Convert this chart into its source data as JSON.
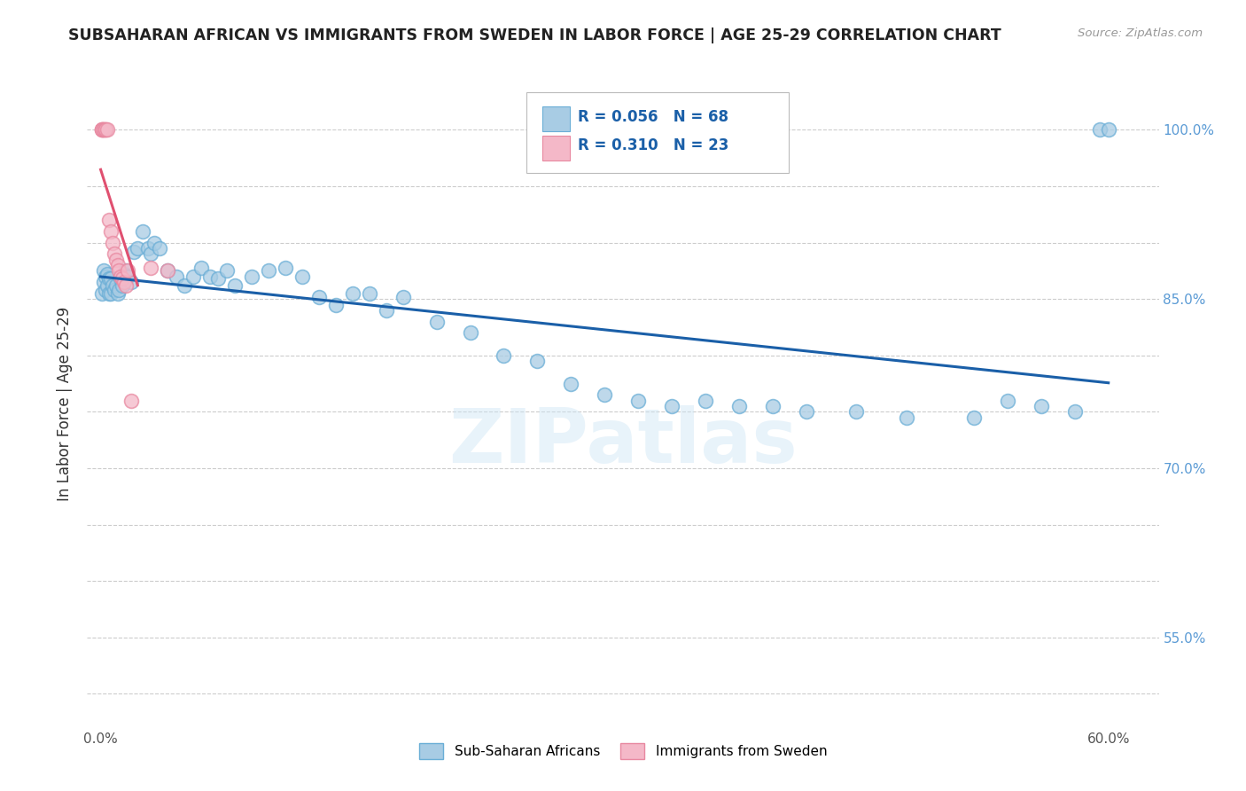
{
  "title": "SUBSAHARAN AFRICAN VS IMMIGRANTS FROM SWEDEN IN LABOR FORCE | AGE 25-29 CORRELATION CHART",
  "source": "Source: ZipAtlas.com",
  "ylabel": "In Labor Force | Age 25-29",
  "background_color": "#ffffff",
  "blue_color": "#a8cce4",
  "blue_edge_color": "#6aaed6",
  "pink_color": "#f4b8c8",
  "pink_edge_color": "#e888a0",
  "blue_line_color": "#1a5fa8",
  "pink_line_color": "#e05070",
  "legend_blue_label": "Sub-Saharan Africans",
  "legend_pink_label": "Immigrants from Sweden",
  "r_blue": 0.056,
  "n_blue": 68,
  "r_pink": 0.31,
  "n_pink": 23,
  "watermark": "ZIPatlas",
  "blue_x": [
    0.001,
    0.002,
    0.002,
    0.003,
    0.003,
    0.004,
    0.004,
    0.005,
    0.005,
    0.006,
    0.006,
    0.007,
    0.008,
    0.009,
    0.01,
    0.011,
    0.012,
    0.013,
    0.014,
    0.015,
    0.016,
    0.018,
    0.02,
    0.022,
    0.025,
    0.028,
    0.03,
    0.032,
    0.035,
    0.04,
    0.045,
    0.05,
    0.055,
    0.06,
    0.065,
    0.07,
    0.075,
    0.08,
    0.09,
    0.1,
    0.11,
    0.12,
    0.13,
    0.14,
    0.15,
    0.16,
    0.17,
    0.18,
    0.2,
    0.22,
    0.24,
    0.26,
    0.28,
    0.3,
    0.32,
    0.34,
    0.36,
    0.38,
    0.4,
    0.42,
    0.45,
    0.48,
    0.52,
    0.54,
    0.56,
    0.58,
    0.595,
    0.6
  ],
  "blue_y": [
    0.855,
    0.865,
    0.875,
    0.858,
    0.87,
    0.862,
    0.872,
    0.855,
    0.868,
    0.855,
    0.868,
    0.862,
    0.858,
    0.862,
    0.855,
    0.858,
    0.868,
    0.862,
    0.872,
    0.875,
    0.87,
    0.865,
    0.892,
    0.895,
    0.91,
    0.895,
    0.89,
    0.9,
    0.895,
    0.875,
    0.87,
    0.862,
    0.87,
    0.878,
    0.87,
    0.868,
    0.875,
    0.862,
    0.87,
    0.875,
    0.878,
    0.87,
    0.852,
    0.845,
    0.855,
    0.855,
    0.84,
    0.852,
    0.83,
    0.82,
    0.8,
    0.795,
    0.775,
    0.765,
    0.76,
    0.755,
    0.76,
    0.755,
    0.755,
    0.75,
    0.75,
    0.745,
    0.745,
    0.76,
    0.755,
    0.75,
    1.0,
    1.0
  ],
  "pink_x": [
    0.001,
    0.001,
    0.001,
    0.002,
    0.002,
    0.003,
    0.003,
    0.004,
    0.005,
    0.006,
    0.007,
    0.008,
    0.009,
    0.01,
    0.011,
    0.012,
    0.013,
    0.014,
    0.015,
    0.016,
    0.018,
    0.03,
    0.04
  ],
  "pink_y": [
    1.0,
    1.0,
    1.0,
    1.0,
    1.0,
    1.0,
    1.0,
    1.0,
    0.92,
    0.91,
    0.9,
    0.89,
    0.885,
    0.88,
    0.875,
    0.87,
    0.868,
    0.865,
    0.862,
    0.875,
    0.76,
    0.878,
    0.875
  ]
}
